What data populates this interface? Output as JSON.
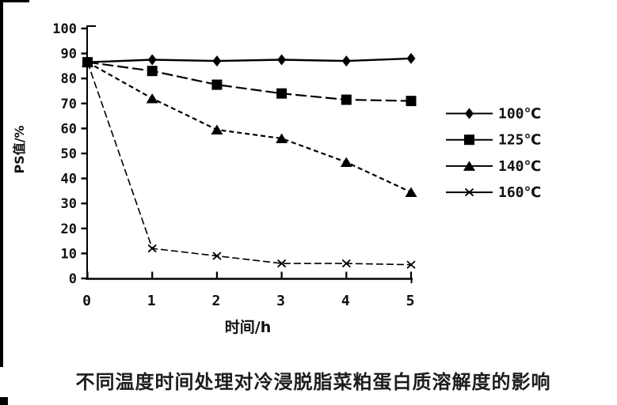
{
  "chart_data": {
    "type": "line",
    "title": "不同温度时间处理对冷浸脱脂菜粕蛋白质溶解度的影响",
    "xlabel": "时间/h",
    "ylabel": "PS值/%",
    "x": [
      0,
      1,
      2,
      3,
      4,
      5
    ],
    "xlim": [
      0,
      5
    ],
    "ylim": [
      0,
      100
    ],
    "xticks": [
      0,
      1,
      2,
      3,
      4,
      5
    ],
    "yticks": [
      0,
      10,
      20,
      30,
      40,
      50,
      60,
      70,
      80,
      90,
      100
    ],
    "grid": false,
    "legend_position": "right",
    "line_color": "#000000",
    "series": [
      {
        "name": "100℃",
        "marker": "diamond",
        "line_style": "solid",
        "values": [
          86.5,
          87.5,
          87,
          87.5,
          87,
          88
        ]
      },
      {
        "name": "125℃",
        "marker": "square",
        "line_style": "long-dash",
        "values": [
          86.5,
          83,
          77.5,
          74,
          71.5,
          71
        ]
      },
      {
        "name": "140℃",
        "marker": "triangle",
        "line_style": "dashed",
        "values": [
          86.5,
          72,
          59.5,
          56,
          46.5,
          34.5
        ]
      },
      {
        "name": "160℃",
        "marker": "x",
        "line_style": "dashed-thin",
        "values": [
          86.5,
          12,
          9,
          6,
          6,
          5.5
        ]
      }
    ]
  }
}
